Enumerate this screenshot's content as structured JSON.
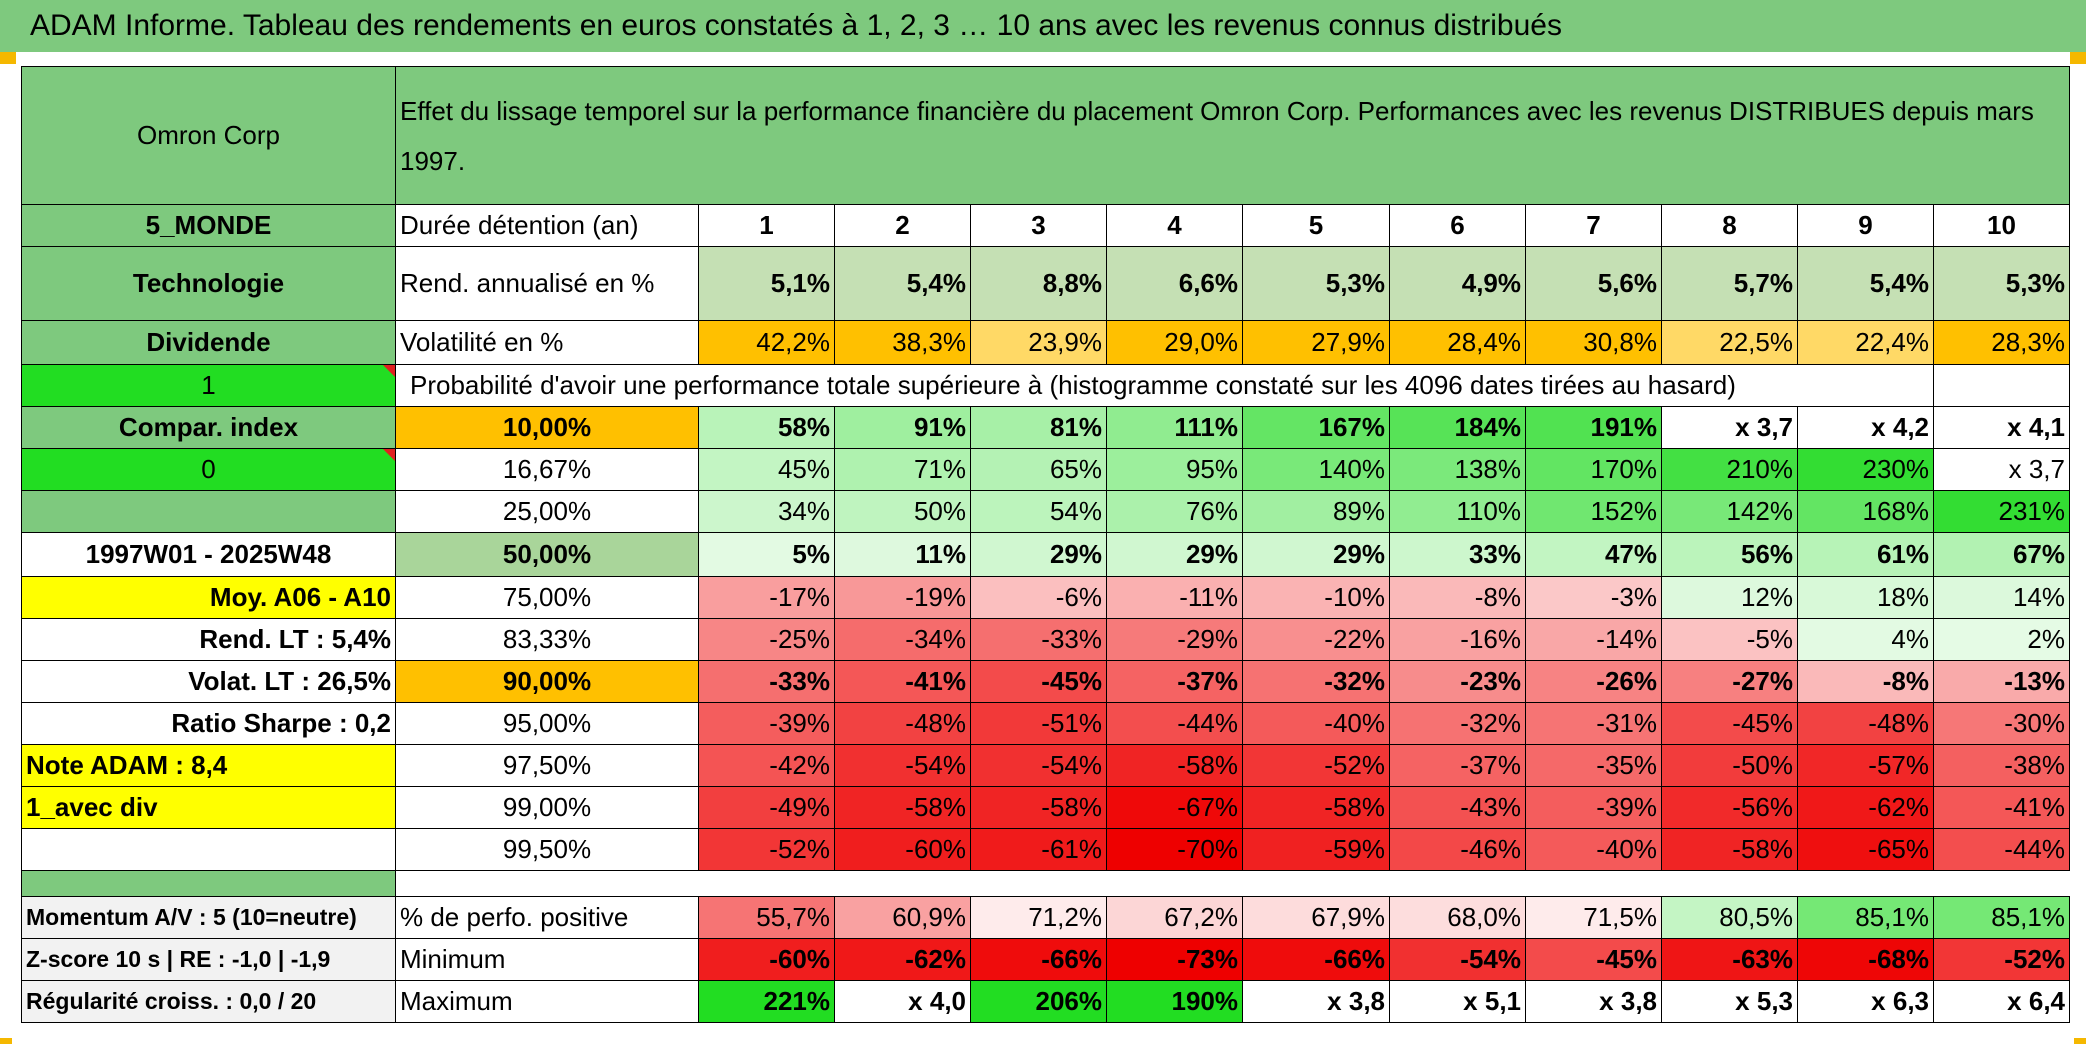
{
  "title": "ADAM Informe. Tableau des rendements en euros constatés à 1, 2, 3 … 10 ans avec les revenus connus distribués",
  "left": {
    "name": "Omron Corp",
    "region": "5_MONDE",
    "sector": "Technologie",
    "dividend_label": "Dividende",
    "flag1": "1",
    "compar_index": "Compar. index",
    "flag0": "0",
    "period": "1997W01 - 2025W48",
    "moy": "Moy. A06 - A10",
    "rend_lt": "Rend. LT :   5,4%",
    "volat_lt": "Volat. LT :   26,5%",
    "sharpe": "Ratio Sharpe :    0,2",
    "note": "Note ADAM : 8,4",
    "avec_div": "1_avec div",
    "momentum": "Momentum A/V : 5 (10=neutre)",
    "zscore": "Z-score 10 s | RE : -1,0 | -1,9",
    "regularite": "Régularité croiss. : 0,0 / 20"
  },
  "header": {
    "desc": "Effet du lissage temporel sur la performance financière du placement Omron Corp. Performances avec les revenus DISTRIBUES depuis mars 1997.",
    "duree_label": "Durée détention (an)",
    "years": [
      "1",
      "2",
      "3",
      "4",
      "5",
      "6",
      "7",
      "8",
      "9",
      "10"
    ]
  },
  "rend": {
    "label": "Rend. annualisé en %",
    "values": [
      "5,1%",
      "5,4%",
      "8,8%",
      "6,6%",
      "5,3%",
      "4,9%",
      "5,6%",
      "5,7%",
      "5,4%",
      "5,3%"
    ]
  },
  "vol": {
    "label": "Volatilité en %",
    "values": [
      "42,2%",
      "38,3%",
      "23,9%",
      "29,0%",
      "27,9%",
      "28,4%",
      "30,8%",
      "22,5%",
      "22,4%",
      "28,3%"
    ]
  },
  "prob_title": "Probabilité d'avoir une performance totale supérieure à (histogramme constaté sur les 4096 dates tirées au hasard)",
  "prob_rows": [
    {
      "pct": "10,00%",
      "values": [
        "58%",
        "91%",
        "81%",
        "111%",
        "167%",
        "184%",
        "191%",
        "x 3,7",
        "x 4,2",
        "x 4,1"
      ]
    },
    {
      "pct": "16,67%",
      "values": [
        "45%",
        "71%",
        "65%",
        "95%",
        "140%",
        "138%",
        "170%",
        "210%",
        "230%",
        "x 3,7"
      ]
    },
    {
      "pct": "25,00%",
      "values": [
        "34%",
        "50%",
        "54%",
        "76%",
        "89%",
        "110%",
        "152%",
        "142%",
        "168%",
        "231%"
      ]
    },
    {
      "pct": "50,00%",
      "values": [
        "5%",
        "11%",
        "29%",
        "29%",
        "29%",
        "33%",
        "47%",
        "56%",
        "61%",
        "67%"
      ]
    },
    {
      "pct": "75,00%",
      "values": [
        "-17%",
        "-19%",
        "-6%",
        "-11%",
        "-10%",
        "-8%",
        "-3%",
        "12%",
        "18%",
        "14%"
      ]
    },
    {
      "pct": "83,33%",
      "values": [
        "-25%",
        "-34%",
        "-33%",
        "-29%",
        "-22%",
        "-16%",
        "-14%",
        "-5%",
        "4%",
        "2%"
      ]
    },
    {
      "pct": "90,00%",
      "values": [
        "-33%",
        "-41%",
        "-45%",
        "-37%",
        "-32%",
        "-23%",
        "-26%",
        "-27%",
        "-8%",
        "-13%"
      ]
    },
    {
      "pct": "95,00%",
      "values": [
        "-39%",
        "-48%",
        "-51%",
        "-44%",
        "-40%",
        "-32%",
        "-31%",
        "-45%",
        "-48%",
        "-30%"
      ]
    },
    {
      "pct": "97,50%",
      "values": [
        "-42%",
        "-54%",
        "-54%",
        "-58%",
        "-52%",
        "-37%",
        "-35%",
        "-50%",
        "-57%",
        "-38%"
      ]
    },
    {
      "pct": "99,00%",
      "values": [
        "-49%",
        "-58%",
        "-58%",
        "-67%",
        "-58%",
        "-43%",
        "-39%",
        "-56%",
        "-62%",
        "-41%"
      ]
    },
    {
      "pct": "99,50%",
      "values": [
        "-52%",
        "-60%",
        "-61%",
        "-70%",
        "-59%",
        "-46%",
        "-40%",
        "-58%",
        "-65%",
        "-44%"
      ]
    }
  ],
  "stats": {
    "pos": {
      "label": "% de perfo. positive",
      "values": [
        "55,7%",
        "60,9%",
        "71,2%",
        "67,2%",
        "67,9%",
        "68,0%",
        "71,5%",
        "80,5%",
        "85,1%",
        "85,1%"
      ]
    },
    "min": {
      "label": "Minimum",
      "values": [
        "-60%",
        "-62%",
        "-66%",
        "-73%",
        "-66%",
        "-54%",
        "-45%",
        "-63%",
        "-68%",
        "-52%"
      ]
    },
    "max": {
      "label": "Maximum",
      "values": [
        "221%",
        "x 4,0",
        "206%",
        "190%",
        "x 3,8",
        "x 5,1",
        "x 3,8",
        "x 5,3",
        "x 6,3",
        "x 6,4"
      ]
    }
  },
  "colors": {
    "green_header": "#7ec97e",
    "bright_green": "#22dd22",
    "orange": "#ffc000",
    "yellow": "#ffff00",
    "red_text": "#d0202a",
    "positive_scale": "#33dd33",
    "negative_scale": "#ee0000"
  }
}
